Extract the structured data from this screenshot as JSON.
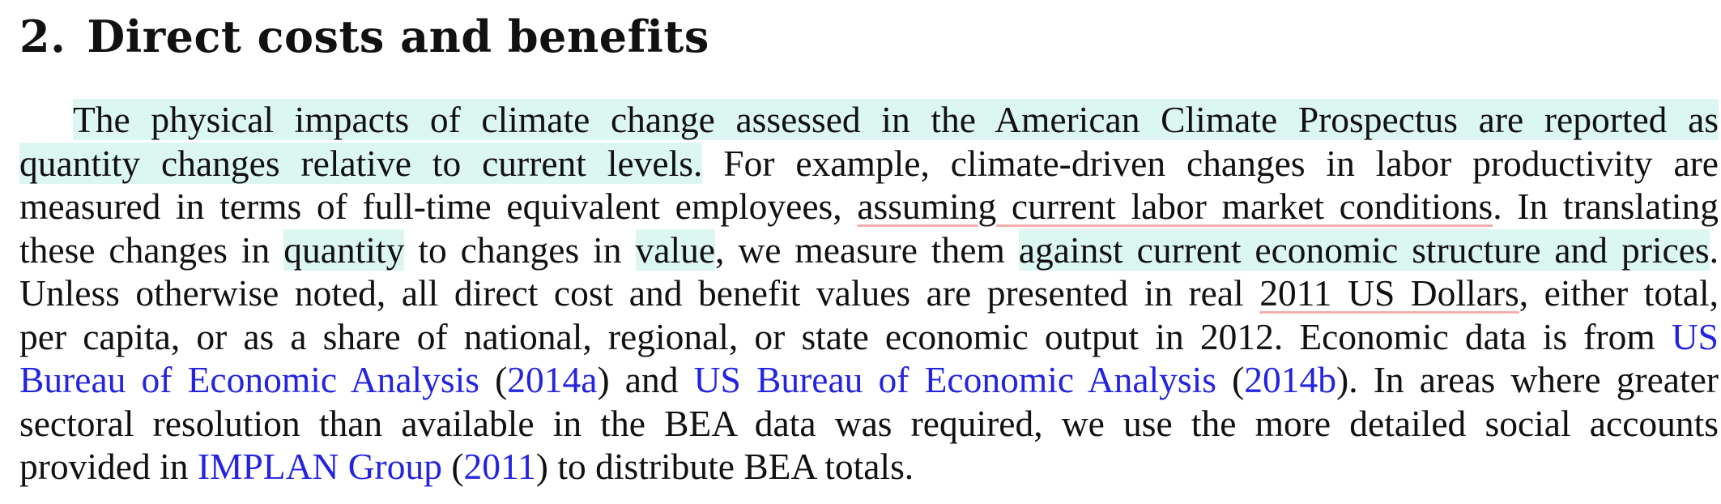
{
  "section": {
    "number": "2.",
    "title": "Direct costs and benefits"
  },
  "paragraph": {
    "l1": "The physical impacts of climate change assessed in the American Climate Prospectus are reported as",
    "l2_hl": "quantity changes relative to current levels.",
    "l2_rest": " For example, climate-driven changes in labor productivity are",
    "l3_a": "measured in terms of full-time equivalent employees, ",
    "l3_ul": "assuming current labor market conditions",
    "l3_b": ". In translating",
    "l4_a": "these changes in ",
    "l4_hl1": "quantity",
    "l4_b": " to changes in ",
    "l4_hl2": "value",
    "l4_c": ", we measure them ",
    "l4_hl3": "against current economic structure and prices",
    "l4_d": ".",
    "l5_a": "Unless otherwise noted, all direct cost and benefit values are presented in real ",
    "l5_ul": "2011 US Dollars",
    "l5_b": ", either total,",
    "l6_a": "per capita, or as a share of national, regional, or state economic output in 2012. Economic data is from ",
    "l6_link": "US",
    "l7_link1": "Bureau of Economic Analysis",
    "l7_a": " (",
    "l7_link2": "2014a",
    "l7_b": ") and ",
    "l7_link3": "US Bureau of Economic Analysis",
    "l7_c": " (",
    "l7_link4": "2014b",
    "l7_d": "). In areas where greater",
    "l8": "sectoral resolution than available in the BEA data was required, we use the more detailed social accounts",
    "l9_a": "provided in ",
    "l9_link1": "IMPLAN Group",
    "l9_b": " (",
    "l9_link2": "2011",
    "l9_c": ") to distribute BEA totals."
  },
  "colors": {
    "highlight": "#dcf6f1",
    "underline": "#f3b0ae",
    "link": "#2424e0"
  }
}
